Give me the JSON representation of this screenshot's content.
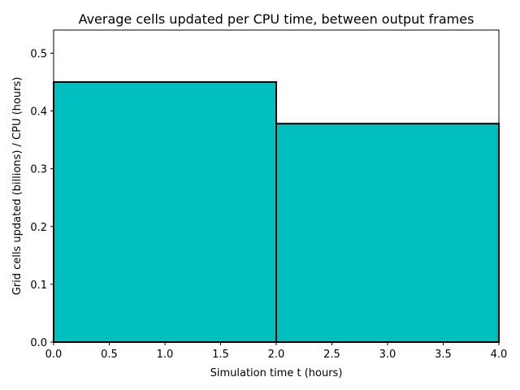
{
  "chart_data": {
    "type": "bar",
    "title": "Average cells updated per CPU time, between output frames",
    "xlabel": "Simulation time t (hours)",
    "ylabel": "Grid cells updated (billions) / CPU (hours)",
    "xlim": [
      0,
      4
    ],
    "ylim": [
      0,
      0.54
    ],
    "xticks": [
      0,
      0.5,
      1,
      1.5,
      2,
      2.5,
      3,
      3.5,
      4
    ],
    "xtick_labels": [
      "0.0",
      "0.5",
      "1.0",
      "1.5",
      "2.0",
      "2.5",
      "3.0",
      "3.5",
      "4.0"
    ],
    "yticks": [
      0,
      0.1,
      0.2,
      0.3,
      0.4,
      0.5
    ],
    "ytick_labels": [
      "0.0",
      "0.1",
      "0.2",
      "0.3",
      "0.4",
      "0.5"
    ],
    "bars": [
      {
        "x_start": 0,
        "x_end": 2,
        "value": 0.45
      },
      {
        "x_start": 2,
        "x_end": 4,
        "value": 0.378
      }
    ],
    "bar_color": "#00bfbf",
    "edge_color": "#000000",
    "grid": false,
    "legend": "none"
  }
}
